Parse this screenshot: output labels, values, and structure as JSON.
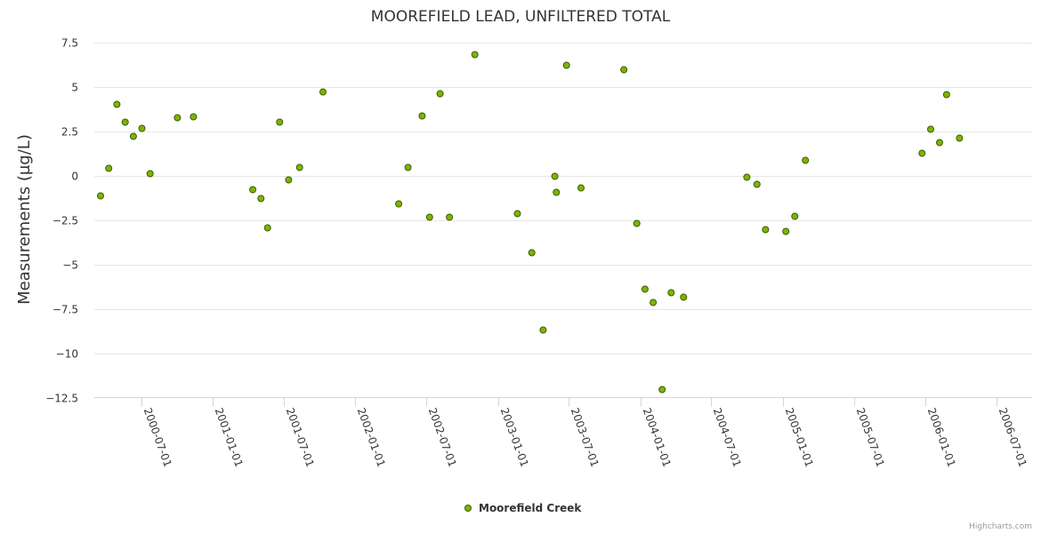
{
  "chart_data": {
    "type": "scatter",
    "title": "MOOREFIELD LEAD, UNFILTERED TOTAL",
    "xlabel": "",
    "ylabel": "Measurements (µg/L)",
    "ylim": [
      -12.5,
      7.5
    ],
    "yticks": [
      7.5,
      5,
      2.5,
      0,
      -2.5,
      -5,
      -7.5,
      -10,
      -12.5
    ],
    "ytick_labels": [
      "7.5",
      "5",
      "2.5",
      "0",
      "−2.5",
      "−5",
      "−7.5",
      "−10",
      "−12.5"
    ],
    "xlim": [
      "2000-03-03",
      "2006-10-01"
    ],
    "xticks": [
      "2000-07-01",
      "2001-01-01",
      "2001-07-01",
      "2002-01-01",
      "2002-07-01",
      "2003-01-01",
      "2003-07-01",
      "2004-01-01",
      "2004-07-01",
      "2005-01-01",
      "2005-07-01",
      "2006-01-01",
      "2006-07-01"
    ],
    "legend": "bottom-center",
    "colors": {
      "marker_fill": "#7cb500",
      "marker_stroke": "#3d5c00",
      "grid": "#e6e6e6"
    },
    "series": [
      {
        "name": "Moorefield Creek",
        "points": [
          {
            "x": "2000-03-19",
            "y": -1.15
          },
          {
            "x": "2000-04-09",
            "y": 0.4
          },
          {
            "x": "2000-04-30",
            "y": 4.0
          },
          {
            "x": "2000-05-21",
            "y": 3.0
          },
          {
            "x": "2000-06-11",
            "y": 2.2
          },
          {
            "x": "2000-07-03",
            "y": 2.65
          },
          {
            "x": "2000-07-24",
            "y": 0.1
          },
          {
            "x": "2000-10-02",
            "y": 3.25
          },
          {
            "x": "2000-11-12",
            "y": 3.3
          },
          {
            "x": "2001-04-13",
            "y": -0.8
          },
          {
            "x": "2001-05-04",
            "y": -1.3
          },
          {
            "x": "2001-05-21",
            "y": -2.95
          },
          {
            "x": "2001-06-21",
            "y": 3.0
          },
          {
            "x": "2001-07-14",
            "y": -0.25
          },
          {
            "x": "2001-08-11",
            "y": 0.45
          },
          {
            "x": "2001-10-10",
            "y": 4.7
          },
          {
            "x": "2002-04-22",
            "y": -1.6
          },
          {
            "x": "2002-05-16",
            "y": 0.45
          },
          {
            "x": "2002-06-21",
            "y": 3.35
          },
          {
            "x": "2002-07-10",
            "y": -2.35
          },
          {
            "x": "2002-08-06",
            "y": 4.6
          },
          {
            "x": "2002-08-30",
            "y": -2.35
          },
          {
            "x": "2002-11-03",
            "y": 6.8
          },
          {
            "x": "2003-02-20",
            "y": -2.15
          },
          {
            "x": "2003-03-29",
            "y": -4.35
          },
          {
            "x": "2003-04-27",
            "y": -8.7
          },
          {
            "x": "2003-05-27",
            "y": -0.05
          },
          {
            "x": "2003-05-31",
            "y": -0.95
          },
          {
            "x": "2003-06-26",
            "y": 6.2
          },
          {
            "x": "2003-08-02",
            "y": -0.7
          },
          {
            "x": "2003-11-20",
            "y": 5.95
          },
          {
            "x": "2003-12-23",
            "y": -2.7
          },
          {
            "x": "2004-01-13",
            "y": -6.4
          },
          {
            "x": "2004-02-03",
            "y": -7.15
          },
          {
            "x": "2004-02-26",
            "y": -12.05
          },
          {
            "x": "2004-03-20",
            "y": -6.6
          },
          {
            "x": "2004-04-21",
            "y": -6.85
          },
          {
            "x": "2004-09-30",
            "y": -0.1
          },
          {
            "x": "2004-10-26",
            "y": -0.5
          },
          {
            "x": "2004-11-17",
            "y": -3.05
          },
          {
            "x": "2005-01-08",
            "y": -3.15
          },
          {
            "x": "2005-01-31",
            "y": -2.3
          },
          {
            "x": "2005-02-27",
            "y": 0.85
          },
          {
            "x": "2005-12-23",
            "y": 1.25
          },
          {
            "x": "2006-01-14",
            "y": 2.6
          },
          {
            "x": "2006-02-06",
            "y": 1.85
          },
          {
            "x": "2006-02-24",
            "y": 4.55
          },
          {
            "x": "2006-03-29",
            "y": 2.1
          }
        ]
      }
    ]
  },
  "credits": "Highcharts.com"
}
